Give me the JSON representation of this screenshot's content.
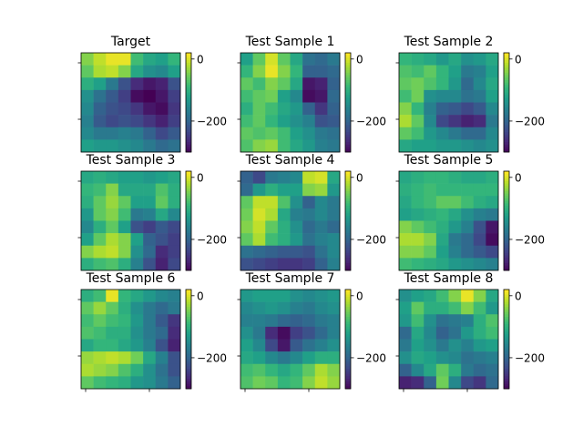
{
  "chart_data": {
    "type": "heatmap",
    "colormap": "viridis",
    "vmin": -300,
    "vmax": 20,
    "colorbar_ticks": [
      0,
      -200
    ],
    "panels": [
      {
        "title": "Target",
        "values": [
          [
            -40,
            -10,
            10,
            10,
            -80,
            -110,
            -120,
            -90
          ],
          [
            -60,
            -20,
            -10,
            -40,
            -110,
            -140,
            -150,
            -120
          ],
          [
            -100,
            -120,
            -170,
            -220,
            -260,
            -280,
            -270,
            -220
          ],
          [
            -140,
            -180,
            -210,
            -240,
            -290,
            -300,
            -280,
            -240
          ],
          [
            -150,
            -200,
            -220,
            -230,
            -250,
            -280,
            -290,
            -250
          ],
          [
            -160,
            -210,
            -230,
            -220,
            -230,
            -250,
            -270,
            -240
          ],
          [
            -150,
            -170,
            -170,
            -160,
            -170,
            -200,
            -230,
            -210
          ],
          [
            -120,
            -130,
            -130,
            -140,
            -150,
            -170,
            -190,
            -180
          ]
        ]
      },
      {
        "title": "Test Sample 1",
        "values": [
          [
            -120,
            -60,
            0,
            -60,
            -110,
            -180,
            -190,
            -170
          ],
          [
            -90,
            -40,
            10,
            -40,
            -90,
            -200,
            -200,
            -190
          ],
          [
            -60,
            -80,
            -40,
            -60,
            -110,
            -280,
            -270,
            -200
          ],
          [
            -80,
            -60,
            -50,
            -120,
            -150,
            -290,
            -280,
            -190
          ],
          [
            -100,
            -60,
            -80,
            -110,
            -130,
            -200,
            -250,
            -200
          ],
          [
            -80,
            -60,
            -90,
            -120,
            -140,
            -160,
            -220,
            -210
          ],
          [
            -60,
            -70,
            -60,
            -80,
            -120,
            -140,
            -170,
            -180
          ],
          [
            -70,
            -40,
            -30,
            -80,
            -110,
            -130,
            -160,
            -170
          ]
        ]
      },
      {
        "title": "Test Sample 2",
        "values": [
          [
            -90,
            -100,
            -110,
            -130,
            -110,
            -140,
            -130,
            -110
          ],
          [
            -70,
            -80,
            -60,
            -90,
            -120,
            -170,
            -160,
            -120
          ],
          [
            -60,
            -50,
            -70,
            -90,
            -130,
            -190,
            -150,
            -110
          ],
          [
            -80,
            -50,
            -140,
            -150,
            -150,
            -180,
            -170,
            -120
          ],
          [
            -40,
            -90,
            -160,
            -200,
            -210,
            -230,
            -210,
            -150
          ],
          [
            -20,
            -60,
            -150,
            -230,
            -250,
            -270,
            -260,
            -170
          ],
          [
            -60,
            -80,
            -130,
            -150,
            -170,
            -190,
            -190,
            -150
          ],
          [
            -110,
            -120,
            -120,
            -130,
            -130,
            -140,
            -150,
            -140
          ]
        ]
      },
      {
        "title": "Test Sample 3",
        "values": [
          [
            -110,
            -100,
            -110,
            -120,
            -120,
            -130,
            -120,
            -110
          ],
          [
            -90,
            -80,
            -40,
            -110,
            -110,
            -110,
            -70,
            -100
          ],
          [
            -100,
            -60,
            -30,
            -60,
            -120,
            -120,
            -60,
            -100
          ],
          [
            -130,
            -60,
            -40,
            -80,
            -170,
            -160,
            -110,
            -150
          ],
          [
            -150,
            -100,
            -60,
            -120,
            -220,
            -240,
            -210,
            -230
          ],
          [
            -120,
            -60,
            -20,
            -40,
            -120,
            -200,
            -220,
            -240
          ],
          [
            -40,
            -20,
            -10,
            -40,
            -140,
            -190,
            -260,
            -240
          ],
          [
            -100,
            -80,
            -70,
            -100,
            -160,
            -220,
            -270,
            -230
          ]
        ]
      },
      {
        "title": "Test Sample 4",
        "values": [
          [
            -200,
            -230,
            -170,
            -160,
            -150,
            -10,
            0,
            -110
          ],
          [
            -190,
            -130,
            -100,
            -120,
            -120,
            -40,
            -30,
            -130
          ],
          [
            -60,
            -10,
            -10,
            -70,
            -140,
            -200,
            -150,
            -170
          ],
          [
            -50,
            0,
            -20,
            -110,
            -160,
            -170,
            -150,
            -170
          ],
          [
            -40,
            -10,
            -60,
            -100,
            -140,
            -190,
            -170,
            -190
          ],
          [
            -60,
            -20,
            -80,
            -100,
            -130,
            -180,
            -160,
            -150
          ],
          [
            -180,
            -190,
            -200,
            -210,
            -210,
            -220,
            -180,
            -150
          ],
          [
            -220,
            -230,
            -240,
            -250,
            -250,
            -240,
            -200,
            -160
          ]
        ]
      },
      {
        "title": "Test Sample 5",
        "values": [
          [
            -110,
            -100,
            -90,
            -90,
            -100,
            -110,
            -110,
            -100
          ],
          [
            -100,
            -90,
            -80,
            -90,
            -90,
            -90,
            -90,
            -90
          ],
          [
            -110,
            -90,
            -80,
            -60,
            -60,
            -80,
            -100,
            -110
          ],
          [
            -120,
            -110,
            -100,
            -90,
            -110,
            -140,
            -160,
            -170
          ],
          [
            -40,
            -60,
            -80,
            -100,
            -130,
            -160,
            -220,
            -280
          ],
          [
            -20,
            -20,
            -40,
            -110,
            -170,
            -190,
            -230,
            -290
          ],
          [
            -40,
            -40,
            -60,
            -120,
            -160,
            -190,
            -210,
            -230
          ],
          [
            -80,
            -90,
            -100,
            -110,
            -130,
            -140,
            -150,
            -160
          ]
        ]
      },
      {
        "title": "Test Sample 6",
        "values": [
          [
            -100,
            -80,
            10,
            -90,
            -110,
            -130,
            -150,
            -160
          ],
          [
            -60,
            -30,
            -60,
            -100,
            -140,
            -170,
            -190,
            -170
          ],
          [
            -80,
            -60,
            -80,
            -90,
            -130,
            -170,
            -210,
            -250
          ],
          [
            -70,
            -80,
            -100,
            -100,
            -140,
            -170,
            -190,
            -260
          ],
          [
            -110,
            -90,
            -90,
            -110,
            -130,
            -160,
            -220,
            -270
          ],
          [
            -30,
            -20,
            -10,
            -20,
            -50,
            -110,
            -160,
            -220
          ],
          [
            -20,
            -30,
            -40,
            -70,
            -100,
            -140,
            -180,
            -220
          ],
          [
            -60,
            -80,
            -90,
            -100,
            -130,
            -140,
            -170,
            -200
          ]
        ]
      },
      {
        "title": "Test Sample 7",
        "values": [
          [
            -130,
            -120,
            -120,
            -120,
            -140,
            -150,
            -140,
            -130
          ],
          [
            -150,
            -140,
            -130,
            -140,
            -160,
            -170,
            -150,
            -140
          ],
          [
            -160,
            -160,
            -170,
            -190,
            -200,
            -190,
            -170,
            -160
          ],
          [
            -140,
            -170,
            -260,
            -290,
            -240,
            -220,
            -190,
            -160
          ],
          [
            -120,
            -150,
            -230,
            -280,
            -210,
            -180,
            -160,
            -140
          ],
          [
            -110,
            -120,
            -150,
            -170,
            -150,
            -120,
            -100,
            -100
          ],
          [
            -80,
            -70,
            -90,
            -110,
            -90,
            -60,
            -20,
            -40
          ],
          [
            -70,
            -50,
            -60,
            -90,
            -80,
            -40,
            -10,
            -30
          ]
        ]
      },
      {
        "title": "Test Sample 8",
        "values": [
          [
            -140,
            -120,
            -110,
            -80,
            -40,
            10,
            -40,
            -110
          ],
          [
            -120,
            -60,
            -100,
            -100,
            -80,
            -40,
            -80,
            -130
          ],
          [
            -130,
            -80,
            -140,
            -180,
            -170,
            -160,
            -100,
            -70
          ],
          [
            -190,
            -110,
            -150,
            -200,
            -180,
            -130,
            -100,
            -80
          ],
          [
            -170,
            -120,
            -140,
            -170,
            -140,
            -160,
            -130,
            -120
          ],
          [
            -140,
            -110,
            -120,
            -140,
            -150,
            -180,
            -170,
            -160
          ],
          [
            -200,
            -150,
            -110,
            -60,
            -100,
            -170,
            -190,
            -180
          ],
          [
            -270,
            -260,
            -200,
            -50,
            -150,
            -230,
            -250,
            -190
          ]
        ]
      }
    ]
  }
}
